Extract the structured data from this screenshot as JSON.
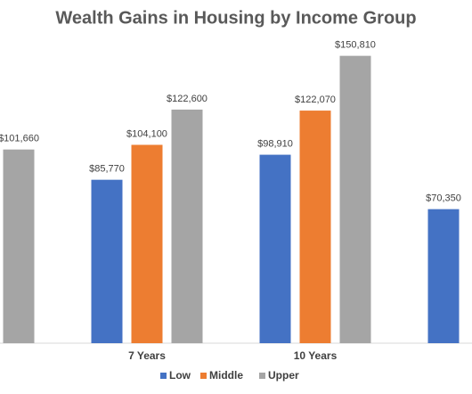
{
  "chart_data": {
    "type": "bar",
    "title": "Wealth Gains in Housing by Income Group",
    "categories": [
      null,
      "7 Years",
      "10 Years",
      null
    ],
    "series": [
      {
        "name": "Low",
        "color": "#4472c4",
        "values": [
          null,
          85770,
          98910,
          70350
        ],
        "value_labels": [
          null,
          "$85,770",
          "$98,910",
          "$70,350"
        ]
      },
      {
        "name": "Middle",
        "color": "#ed7d31",
        "values": [
          null,
          104100,
          122070,
          null
        ],
        "value_labels": [
          null,
          "$104,100",
          "$122,070",
          null
        ]
      },
      {
        "name": "Upper",
        "color": "#a5a5a5",
        "values": [
          101660,
          122600,
          150810,
          null
        ],
        "value_labels": [
          "$101,660",
          "$122,600",
          "$150,810",
          null
        ]
      }
    ],
    "ylim": [
      0,
      160000
    ],
    "legend": "bottom"
  }
}
